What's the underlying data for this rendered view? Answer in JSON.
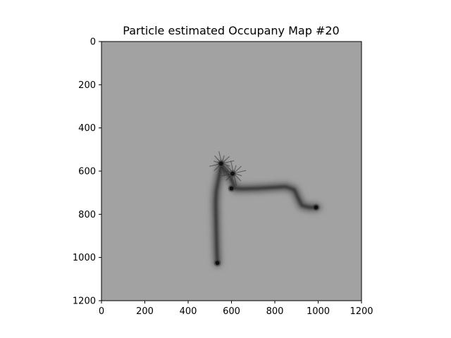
{
  "chart_data": {
    "type": "heatmap",
    "title": "Particle estimated Occupany Map #20",
    "xlabel": "",
    "ylabel": "",
    "xlim": [
      0,
      1200
    ],
    "ylim": [
      1200,
      0
    ],
    "y_inverted": true,
    "x_ticks": [
      0,
      200,
      400,
      600,
      800,
      1000,
      1200
    ],
    "y_ticks": [
      0,
      200,
      400,
      600,
      800,
      1000,
      1200
    ],
    "x_tick_labels": [
      "0",
      "200",
      "400",
      "600",
      "800",
      "1000",
      "1200"
    ],
    "y_tick_labels": [
      "0",
      "200",
      "400",
      "600",
      "800",
      "1000",
      "1200"
    ],
    "colormap": "grayscale",
    "background_color": "#a2a2a2",
    "occupied_color": "#101010",
    "grid": false,
    "legend": "none",
    "trajectory": [
      [
        535,
        1025
      ],
      [
        532,
        960
      ],
      [
        530,
        880
      ],
      [
        528,
        800
      ],
      [
        527,
        740
      ],
      [
        530,
        690
      ],
      [
        540,
        640
      ],
      [
        548,
        600
      ],
      [
        552,
        570
      ],
      [
        565,
        590
      ],
      [
        590,
        620
      ],
      [
        605,
        650
      ],
      [
        615,
        680
      ],
      [
        650,
        682
      ],
      [
        720,
        680
      ],
      [
        790,
        676
      ],
      [
        850,
        672
      ],
      [
        890,
        686
      ],
      [
        905,
        720
      ],
      [
        925,
        760
      ],
      [
        960,
        768
      ],
      [
        995,
        768
      ]
    ],
    "dense_spots": [
      {
        "x": 552,
        "y": 565
      },
      {
        "x": 605,
        "y": 612
      },
      {
        "x": 600,
        "y": 680
      },
      {
        "x": 535,
        "y": 1025
      },
      {
        "x": 990,
        "y": 768
      }
    ],
    "ray_origins": [
      {
        "x": 555,
        "y": 565
      },
      {
        "x": 610,
        "y": 610
      }
    ]
  }
}
